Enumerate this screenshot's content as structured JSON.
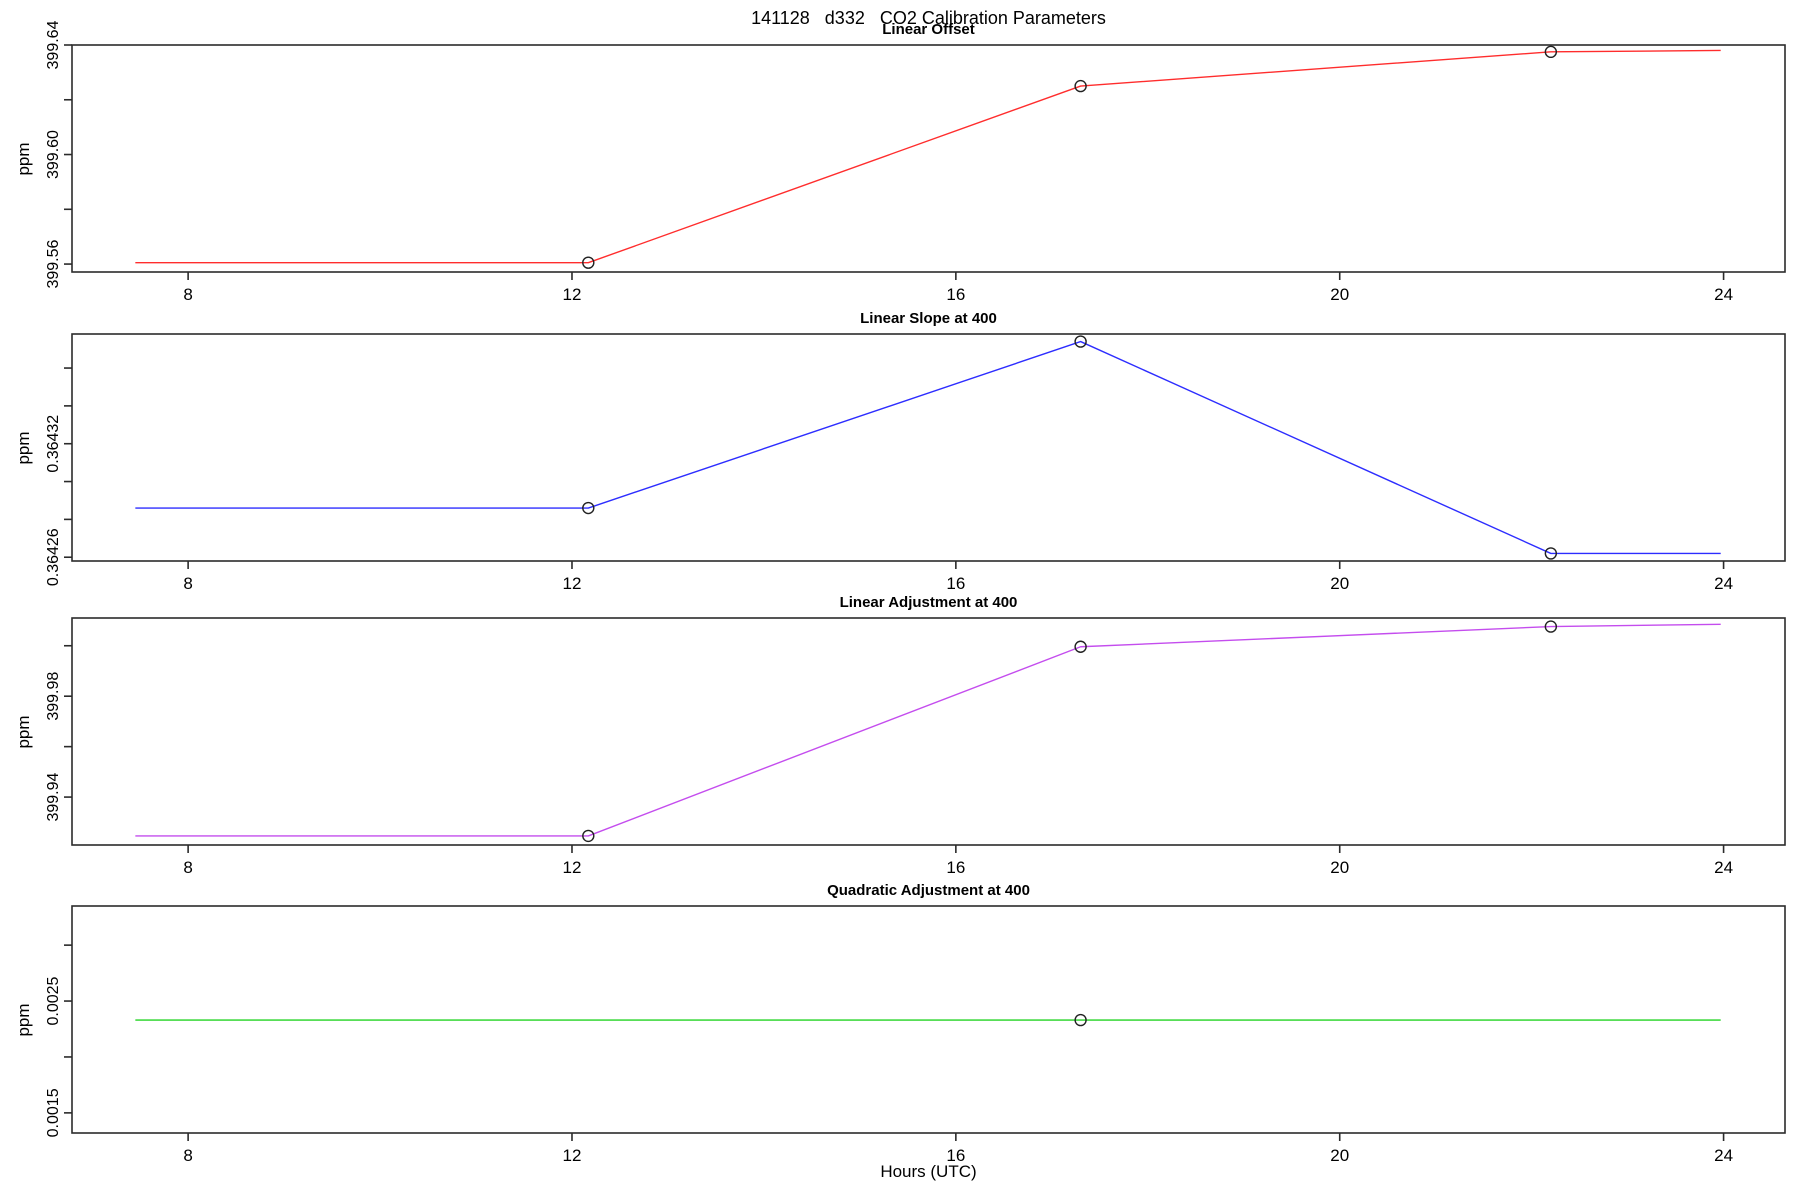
{
  "main_title": "141128   d332   CO2 Calibration Parameters",
  "chart_data": {
    "type": "line",
    "title": "141128   d332   CO2 Calibration Parameters",
    "xlabel": "Hours (UTC)",
    "x_range": [
      6.79,
      24.64
    ],
    "x_ticks": [
      8,
      12,
      16,
      20,
      24
    ],
    "x_tick_labels": [
      "8",
      "12",
      "16",
      "20",
      "24"
    ],
    "grid": false,
    "legend": "none",
    "marker": "open-circle",
    "calibration_hours": [
      12.17,
      17.3,
      22.2
    ],
    "panels": [
      {
        "title": "Linear Offset",
        "ylabel": "ppm",
        "color": "#ff2d2d",
        "y_range": [
          399.5571,
          399.64
        ],
        "y_ticks": [
          399.56,
          399.58,
          399.6,
          399.62,
          399.64
        ],
        "y_tick_labels": [
          "399.56",
          "",
          "399.60",
          "",
          "399.64"
        ],
        "line": {
          "x": [
            7.45,
            12.17,
            17.3,
            22.2,
            23.97
          ],
          "y": [
            399.5605,
            399.5605,
            399.625,
            399.6375,
            399.638
          ]
        },
        "points": {
          "x": [
            12.17,
            17.3,
            22.2
          ],
          "y": [
            399.5605,
            399.625,
            399.6375
          ]
        }
      },
      {
        "title": "Linear Slope at 400",
        "ylabel": "ppm",
        "color": "#2d2dff",
        "y_range": [
          0.364258,
          0.364378
        ],
        "y_ticks": [
          0.36426,
          0.36428,
          0.3643,
          0.36432,
          0.36434,
          0.36436
        ],
        "y_tick_labels": [
          "0.36426",
          "",
          "",
          "0.36432",
          "",
          ""
        ],
        "line": {
          "x": [
            7.45,
            12.17,
            17.3,
            22.2,
            23.97
          ],
          "y": [
            0.364286,
            0.364286,
            0.364374,
            0.364262,
            0.364262
          ]
        },
        "points": {
          "x": [
            12.17,
            17.3,
            22.2
          ],
          "y": [
            0.364286,
            0.364374,
            0.364262
          ]
        }
      },
      {
        "title": "Linear Adjustment at 400",
        "ylabel": "ppm",
        "color": "#c44dee",
        "y_range": [
          399.921,
          400.011
        ],
        "y_ticks": [
          399.94,
          399.96,
          399.98,
          400.0
        ],
        "y_tick_labels": [
          "399.94",
          "",
          "399.98",
          ""
        ],
        "line": {
          "x": [
            7.45,
            12.17,
            17.3,
            22.2,
            23.97
          ],
          "y": [
            399.9246,
            399.9246,
            399.9996,
            400.0076,
            400.0085
          ]
        },
        "points": {
          "x": [
            12.17,
            17.3,
            22.2
          ],
          "y": [
            399.9246,
            399.9996,
            400.0076
          ]
        }
      },
      {
        "title": "Quadratic Adjustment at 400",
        "ylabel": "ppm",
        "color": "#21d421",
        "y_range": [
          0.00132,
          0.00335
        ],
        "y_ticks": [
          0.0015,
          0.002,
          0.0025,
          0.003
        ],
        "y_tick_labels": [
          "0.0015",
          "",
          "0.0025",
          ""
        ],
        "line": {
          "x": [
            7.45,
            23.97
          ],
          "y": [
            0.00233,
            0.00233
          ]
        },
        "points": {
          "x": [
            17.3
          ],
          "y": [
            0.00233
          ]
        }
      }
    ]
  }
}
